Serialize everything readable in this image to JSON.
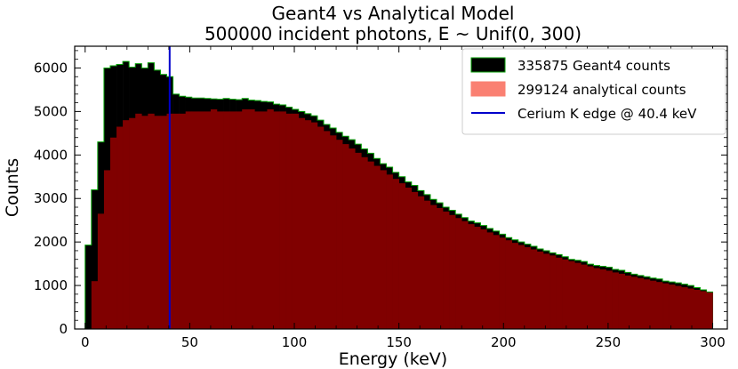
{
  "chart_data": {
    "type": "bar",
    "title": "Geant4 vs Analytical Model",
    "subtitle": "500000 incident photons, E ~ Unif(0, 300)",
    "xlabel": "Energy (keV)",
    "ylabel": "Counts",
    "xlim": [
      -5,
      307
    ],
    "ylim": [
      0,
      6500
    ],
    "x_ticks": [
      0,
      50,
      100,
      150,
      200,
      250,
      300
    ],
    "y_ticks": [
      0,
      1000,
      2000,
      3000,
      4000,
      5000,
      6000
    ],
    "bin_width": 3,
    "legend_position": "top-right",
    "series": [
      {
        "name": "335875 Geant4 counts",
        "color": "#000000",
        "edge_color": "#00a000",
        "bin_starts": [
          0,
          3,
          6,
          9,
          12,
          15,
          18,
          21,
          24,
          27,
          30,
          33,
          36,
          39,
          42,
          45,
          48,
          51,
          54,
          57,
          60,
          63,
          66,
          69,
          72,
          75,
          78,
          81,
          84,
          87,
          90,
          93,
          96,
          99,
          102,
          105,
          108,
          111,
          114,
          117,
          120,
          123,
          126,
          129,
          132,
          135,
          138,
          141,
          144,
          147,
          150,
          153,
          156,
          159,
          162,
          165,
          168,
          171,
          174,
          177,
          180,
          183,
          186,
          189,
          192,
          195,
          198,
          201,
          204,
          207,
          210,
          213,
          216,
          219,
          222,
          225,
          228,
          231,
          234,
          237,
          240,
          243,
          246,
          249,
          252,
          255,
          258,
          261,
          264,
          267,
          270,
          273,
          276,
          279,
          282,
          285,
          288,
          291,
          294,
          297
        ],
        "values": [
          1930,
          3200,
          4300,
          6000,
          6050,
          6080,
          6150,
          6020,
          6100,
          6000,
          6120,
          5950,
          5850,
          5800,
          5400,
          5350,
          5330,
          5310,
          5310,
          5300,
          5290,
          5280,
          5300,
          5280,
          5270,
          5300,
          5260,
          5250,
          5230,
          5220,
          5170,
          5150,
          5100,
          5050,
          5000,
          4950,
          4900,
          4800,
          4700,
          4620,
          4520,
          4430,
          4350,
          4250,
          4140,
          4040,
          3920,
          3800,
          3720,
          3600,
          3500,
          3380,
          3300,
          3180,
          3090,
          2980,
          2900,
          2800,
          2730,
          2640,
          2560,
          2480,
          2440,
          2380,
          2310,
          2250,
          2180,
          2100,
          2050,
          2000,
          1950,
          1900,
          1840,
          1800,
          1750,
          1710,
          1660,
          1600,
          1580,
          1550,
          1490,
          1460,
          1440,
          1420,
          1370,
          1350,
          1300,
          1260,
          1230,
          1200,
          1170,
          1150,
          1100,
          1080,
          1060,
          1030,
          1000,
          950,
          900,
          850
        ]
      },
      {
        "name": "299124 analytical counts",
        "color": "#800000",
        "legend_color": "#fa8072",
        "bin_starts": [
          0,
          3,
          6,
          9,
          12,
          15,
          18,
          21,
          24,
          27,
          30,
          33,
          36,
          39,
          42,
          45,
          48,
          51,
          54,
          57,
          60,
          63,
          66,
          69,
          72,
          75,
          78,
          81,
          84,
          87,
          90,
          93,
          96,
          99,
          102,
          105,
          108,
          111,
          114,
          117,
          120,
          123,
          126,
          129,
          132,
          135,
          138,
          141,
          144,
          147,
          150,
          153,
          156,
          159,
          162,
          165,
          168,
          171,
          174,
          177,
          180,
          183,
          186,
          189,
          192,
          195,
          198,
          201,
          204,
          207,
          210,
          213,
          216,
          219,
          222,
          225,
          228,
          231,
          234,
          237,
          240,
          243,
          246,
          249,
          252,
          255,
          258,
          261,
          264,
          267,
          270,
          273,
          276,
          279,
          282,
          285,
          288,
          291,
          294,
          297
        ],
        "values": [
          0,
          1100,
          2650,
          3650,
          4400,
          4650,
          4800,
          4850,
          4950,
          4900,
          4950,
          4900,
          4900,
          4950,
          4950,
          4950,
          5000,
          5000,
          5000,
          5000,
          5050,
          5000,
          5000,
          5000,
          5000,
          5050,
          5050,
          5000,
          5000,
          5050,
          5000,
          5000,
          4950,
          4950,
          4850,
          4800,
          4750,
          4650,
          4550,
          4450,
          4350,
          4250,
          4150,
          4050,
          3950,
          3850,
          3750,
          3650,
          3550,
          3450,
          3350,
          3250,
          3150,
          3050,
          2950,
          2850,
          2780,
          2700,
          2620,
          2550,
          2480,
          2410,
          2350,
          2290,
          2220,
          2160,
          2100,
          2040,
          1980,
          1930,
          1880,
          1830,
          1780,
          1730,
          1690,
          1640,
          1600,
          1560,
          1520,
          1480,
          1440,
          1400,
          1370,
          1340,
          1300,
          1270,
          1230,
          1200,
          1170,
          1140,
          1110,
          1080,
          1050,
          1020,
          990,
          960,
          930,
          900,
          870,
          840
        ]
      },
      {
        "name": "Cerium K edge @ 40.4 keV",
        "type": "vline",
        "x": 40.4,
        "color": "#0000cc"
      }
    ]
  }
}
